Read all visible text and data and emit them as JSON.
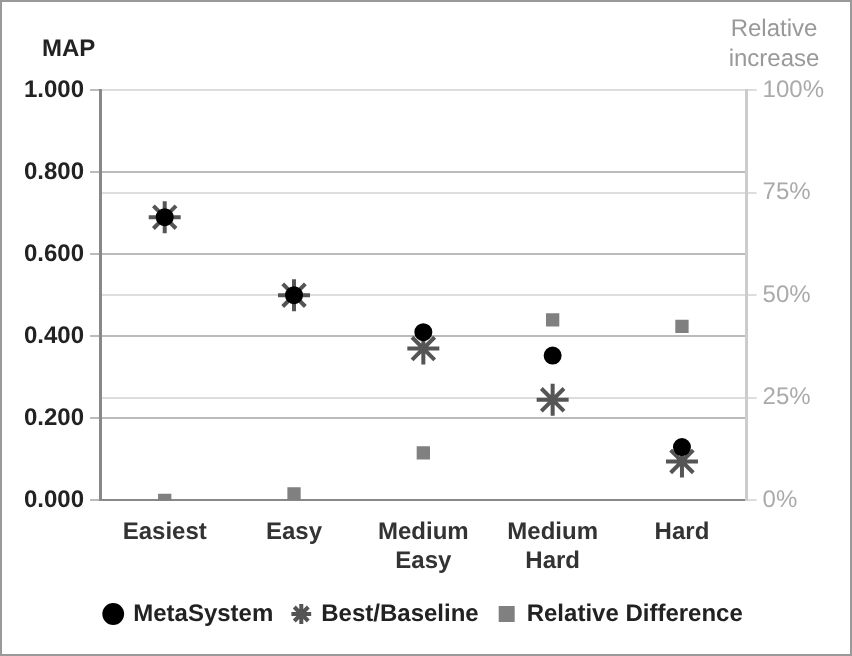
{
  "chart_data": {
    "type": "scatter",
    "ylabel": "MAP",
    "y2label": "Relative increase",
    "categories": [
      "Easiest",
      "Easy",
      "Medium Easy",
      "Medium Hard",
      "Hard"
    ],
    "series": [
      {
        "name": "MetaSystem",
        "color": "#000000",
        "marker": "circle",
        "values": [
          0.69,
          0.5,
          0.41,
          0.353,
          0.13
        ]
      },
      {
        "name": "Best/Baseline",
        "color": "#555555",
        "marker": "cross",
        "values": [
          0.69,
          0.5,
          0.37,
          0.245,
          0.095
        ]
      },
      {
        "name": "Relative Difference",
        "color": "#808080",
        "marker": "square",
        "axis": "y2",
        "values": [
          0,
          1.6,
          11.6,
          44,
          42.4
        ]
      }
    ],
    "ylim": [
      0,
      1
    ],
    "yticks": [
      {
        "value": 0,
        "label": "0.000"
      },
      {
        "value": 0.2,
        "label": "0.200"
      },
      {
        "value": 0.4,
        "label": "0.400"
      },
      {
        "value": 0.6,
        "label": "0.600"
      },
      {
        "value": 0.8,
        "label": "0.800"
      },
      {
        "value": 1,
        "label": "1.000"
      }
    ],
    "y2lim": [
      0,
      100
    ],
    "y2ticks": [
      {
        "value": 0,
        "label": "0%"
      },
      {
        "value": 25,
        "label": "25%"
      },
      {
        "value": 50,
        "label": "50%"
      },
      {
        "value": 75,
        "label": "75%"
      },
      {
        "value": 100,
        "label": "100%"
      }
    ],
    "grid": "y",
    "legend": "bottom"
  }
}
